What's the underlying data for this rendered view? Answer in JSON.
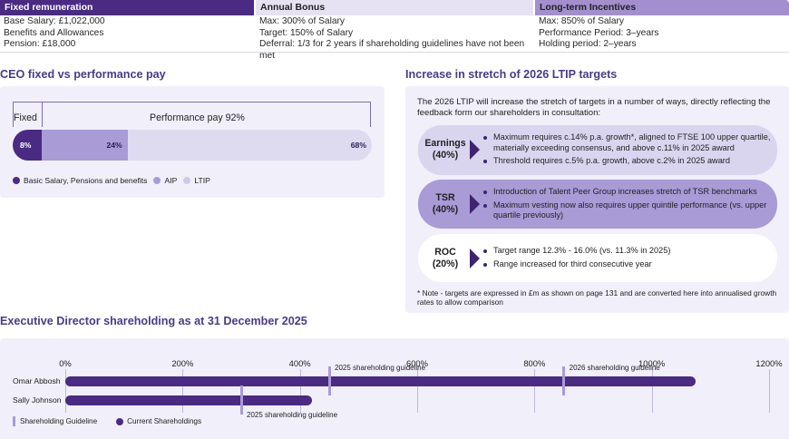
{
  "remuneration": {
    "fixed": {
      "title": "Fixed remuneration",
      "lines": [
        "Base Salary: £1,022,000",
        "Benefits and Allowances",
        "Pension: £18,000"
      ]
    },
    "bonus": {
      "title": "Annual Bonus",
      "lines": [
        "Max: 300% of Salary",
        "Target: 150% of Salary",
        "Deferral: 1/3 for 2 years if shareholding guidelines have not been met"
      ]
    },
    "ltip": {
      "title": "Long-term Incentives",
      "lines": [
        "Max: 850% of Salary",
        "Performance Period: 3–years",
        "Holding period: 2–years"
      ]
    }
  },
  "ceo_pay": {
    "title": "CEO fixed vs performance pay",
    "fixed_label": "Fixed",
    "performance_label": "Performance pay 92%",
    "segments": [
      {
        "name": "Basic Salary, Pensions and benefits",
        "value": 8,
        "label": "8%",
        "color": "#4a2a82"
      },
      {
        "name": "AIP",
        "value": 24,
        "label": "24%",
        "color": "#a89bd6"
      },
      {
        "name": "LTIP",
        "value": 68,
        "label": "68%",
        "color": "#dedaf0"
      }
    ]
  },
  "ltip_targets": {
    "title": "Increase in stretch of 2026 LTIP targets",
    "intro": "The 2026 LTIP will increase the stretch of targets in a number of ways, directly reflecting the feedback form our shareholders in consultation:",
    "measures": [
      {
        "name": "Earnings",
        "weight": "(40%)",
        "bullets": [
          "Maximum requires c.14% p.a. growth*, aligned to FTSE 100 upper quartile, materially exceeding consensus, and above c.11% in 2025 award",
          "Threshold requires c.5% p.a. growth, above c.2% in 2025 award"
        ]
      },
      {
        "name": "TSR",
        "weight": "(40%)",
        "bullets": [
          "Introduction of Talent Peer Group increases stretch of TSR benchmarks",
          "Maximum vesting now also requires upper quintile performance (vs. upper quartile previously)"
        ]
      },
      {
        "name": "ROC",
        "weight": "(20%)",
        "bullets": [
          "Target range 12.3% - 16.0% (vs. 11.3% in 2025)",
          "Range increased for third consecutive year"
        ]
      }
    ],
    "note": "* Note - targets are expressed in £m as shown on page 131 and are converted here into annualised growth rates to allow comparison"
  },
  "chart_data": {
    "type": "bar",
    "title": "Executive Director shareholding as at 31 December 2025",
    "xlim": [
      0,
      1200
    ],
    "x_ticks": [
      "0%",
      "200%",
      "400%",
      "600%",
      "800%",
      "1000%",
      "1200%"
    ],
    "categories": [
      "Omar Abbosh",
      "Sally Johnson"
    ],
    "series": [
      {
        "name": "Current Shareholdings",
        "values": [
          1075,
          420
        ],
        "color": "#4a2a82"
      }
    ],
    "guidelines": [
      {
        "label": "2025 shareholding guideline",
        "values": [
          450,
          300
        ]
      },
      {
        "label": "2026 shareholding guideline",
        "values": [
          850,
          null
        ]
      }
    ],
    "legend": [
      "Shareholding Guideline",
      "Current Shareholdings"
    ],
    "legend_position": "bottom-left",
    "grid": true
  }
}
